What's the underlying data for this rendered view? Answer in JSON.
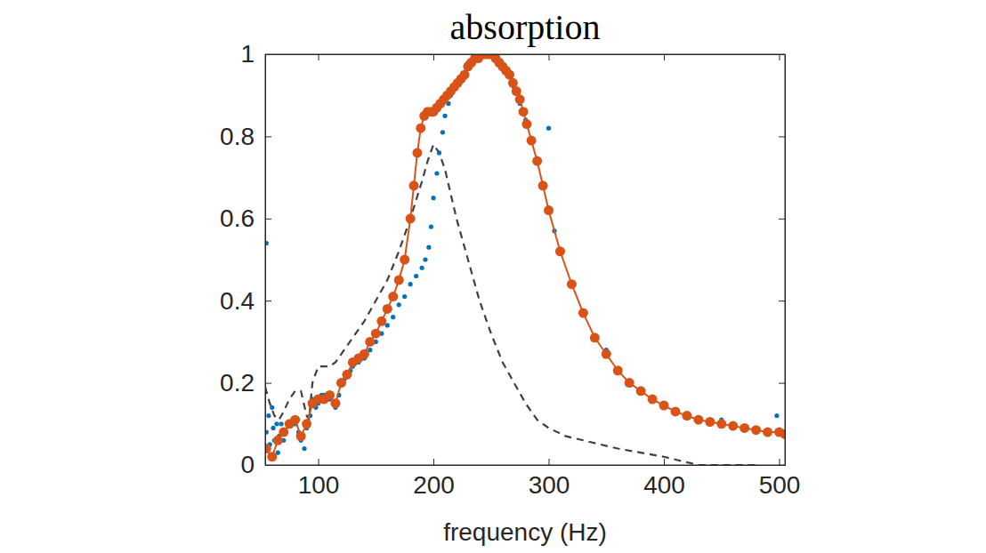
{
  "chart_data": {
    "type": "line",
    "title": "absorption",
    "x_label": "frequency (Hz)",
    "xlim": [
      54,
      505
    ],
    "ylim": [
      0,
      1
    ],
    "xticks": [
      100,
      200,
      300,
      400,
      500
    ],
    "yticks": [
      0,
      0.2,
      0.4,
      0.6,
      0.8,
      1
    ],
    "grid": false,
    "series": [
      {
        "color": "#404040",
        "marker": "none",
        "line_style": "dashed",
        "type": "line",
        "x": [
          54,
          58,
          62,
          66,
          70,
          75,
          80,
          85,
          90,
          92,
          95,
          100,
          105,
          110,
          115,
          120,
          130,
          140,
          150,
          160,
          170,
          180,
          190,
          195,
          200,
          205,
          210,
          215,
          220,
          230,
          240,
          250,
          260,
          270,
          280,
          290,
          300,
          315,
          330,
          345,
          360,
          380,
          400,
          415,
          430,
          450,
          480
        ],
        "values": [
          0.19,
          0.15,
          0.12,
          0.11,
          0.13,
          0.16,
          0.18,
          0.18,
          0.12,
          0.11,
          0.2,
          0.24,
          0.24,
          0.24,
          0.25,
          0.27,
          0.31,
          0.35,
          0.4,
          0.45,
          0.52,
          0.6,
          0.69,
          0.74,
          0.78,
          0.76,
          0.72,
          0.66,
          0.6,
          0.5,
          0.4,
          0.32,
          0.25,
          0.2,
          0.15,
          0.11,
          0.09,
          0.07,
          0.06,
          0.05,
          0.04,
          0.03,
          0.02,
          0.01,
          0.0,
          0.0,
          0.0
        ]
      },
      {
        "color": "#0072bd",
        "marker": "dot",
        "line_style": "none",
        "type": "scatter",
        "x": [
          55,
          55,
          57,
          58,
          60,
          61,
          62,
          64,
          65,
          66,
          68,
          70,
          72,
          75,
          78,
          80,
          83,
          85,
          88,
          90,
          93,
          95,
          98,
          100,
          103,
          105,
          108,
          110,
          113,
          115,
          118,
          120,
          123,
          125,
          128,
          130,
          135,
          140,
          145,
          150,
          155,
          160,
          165,
          170,
          175,
          180,
          185,
          190,
          193,
          196,
          198,
          200,
          203,
          205,
          208,
          210,
          213,
          215,
          218,
          220,
          225,
          230,
          235,
          240,
          245,
          250,
          255,
          260,
          265,
          270,
          275,
          280,
          285,
          290,
          295,
          300,
          300,
          305,
          310,
          320,
          330,
          340,
          350,
          350,
          360,
          370,
          380,
          390,
          400,
          410,
          420,
          430,
          440,
          450,
          450,
          460,
          470,
          480,
          490,
          498,
          500,
          505
        ],
        "values": [
          0.54,
          0.08,
          0.12,
          0.05,
          0.14,
          0.09,
          0.06,
          0.1,
          0.03,
          0.07,
          0.1,
          0.06,
          0.08,
          0.1,
          0.11,
          0.1,
          0.08,
          0.06,
          0.04,
          0.09,
          0.12,
          0.16,
          0.14,
          0.15,
          0.17,
          0.17,
          0.16,
          0.16,
          0.15,
          0.14,
          0.17,
          0.2,
          0.21,
          0.22,
          0.23,
          0.24,
          0.25,
          0.26,
          0.28,
          0.3,
          0.32,
          0.34,
          0.36,
          0.39,
          0.41,
          0.44,
          0.46,
          0.48,
          0.5,
          0.53,
          0.58,
          0.65,
          0.71,
          0.76,
          0.81,
          0.85,
          0.88,
          0.9,
          0.92,
          0.93,
          0.95,
          0.98,
          0.99,
          1.0,
          1.0,
          1.0,
          0.99,
          0.97,
          0.95,
          0.92,
          0.88,
          0.84,
          0.79,
          0.74,
          0.68,
          0.62,
          0.82,
          0.57,
          0.52,
          0.44,
          0.37,
          0.31,
          0.27,
          0.28,
          0.23,
          0.2,
          0.18,
          0.16,
          0.145,
          0.13,
          0.12,
          0.11,
          0.105,
          0.1,
          0.11,
          0.095,
          0.09,
          0.085,
          0.08,
          0.12,
          0.08,
          0.075
        ]
      },
      {
        "color": "#d95319",
        "marker": "circle",
        "line_style": "solid",
        "type": "line",
        "x": [
          55,
          60,
          65,
          70,
          75,
          80,
          85,
          90,
          95,
          100,
          105,
          110,
          115,
          120,
          125,
          130,
          135,
          140,
          145,
          150,
          155,
          160,
          165,
          170,
          175,
          180,
          183,
          186,
          189,
          192,
          195,
          198,
          200,
          203,
          206,
          209,
          212,
          215,
          218,
          221,
          224,
          227,
          230,
          233,
          236,
          239,
          242,
          245,
          248,
          251,
          254,
          257,
          260,
          263,
          266,
          269,
          272,
          275,
          278,
          281,
          285,
          290,
          295,
          300,
          310,
          320,
          330,
          340,
          350,
          360,
          370,
          380,
          390,
          400,
          410,
          420,
          430,
          440,
          450,
          460,
          470,
          480,
          490,
          500,
          505
        ],
        "values": [
          0.04,
          0.02,
          0.06,
          0.08,
          0.1,
          0.11,
          0.07,
          0.1,
          0.15,
          0.16,
          0.16,
          0.17,
          0.15,
          0.2,
          0.22,
          0.25,
          0.26,
          0.27,
          0.3,
          0.32,
          0.35,
          0.38,
          0.41,
          0.45,
          0.5,
          0.6,
          0.68,
          0.76,
          0.82,
          0.85,
          0.86,
          0.86,
          0.86,
          0.87,
          0.88,
          0.89,
          0.9,
          0.91,
          0.92,
          0.93,
          0.94,
          0.95,
          0.97,
          0.98,
          0.99,
          0.99,
          1.0,
          1.0,
          1.0,
          1.0,
          0.99,
          0.98,
          0.97,
          0.96,
          0.95,
          0.93,
          0.91,
          0.89,
          0.86,
          0.83,
          0.79,
          0.74,
          0.68,
          0.62,
          0.52,
          0.44,
          0.37,
          0.31,
          0.27,
          0.23,
          0.2,
          0.18,
          0.16,
          0.145,
          0.13,
          0.12,
          0.11,
          0.105,
          0.1,
          0.095,
          0.09,
          0.085,
          0.08,
          0.08,
          0.075
        ]
      }
    ]
  }
}
